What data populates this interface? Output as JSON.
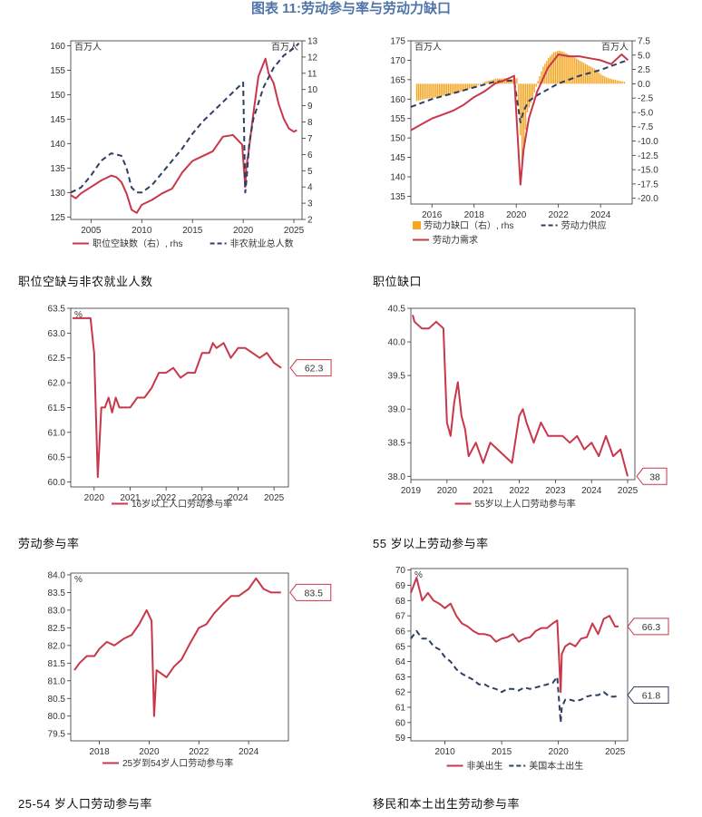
{
  "page_title": "图表 11:劳动参与率与劳动力缺口",
  "captions": [
    "职位空缺与非农就业人数",
    "职位缺口",
    "劳动参与率",
    "55 岁以上劳动参与率",
    "25-54 岁人口劳动参与率",
    "移民和本土出生劳动参与率"
  ],
  "colors": {
    "red": "#c8374a",
    "navy": "#2e3f63",
    "orange": "#f5a623",
    "title": "#4f74a8"
  },
  "chart_data": [
    {
      "type": "line",
      "unit_left": "百万人",
      "unit_right": "百万人",
      "xlim": [
        2003,
        2025.8
      ],
      "ylim": [
        124.5,
        161
      ],
      "ylim_right": [
        2,
        13
      ],
      "xticks": [
        2005,
        2010,
        2015,
        2020,
        2025
      ],
      "yticks": [
        125,
        130,
        135,
        140,
        145,
        150,
        155,
        160
      ],
      "yticks_right": [
        2,
        3,
        4,
        5,
        6,
        7,
        8,
        9,
        10,
        11,
        12,
        13
      ],
      "series": [
        {
          "name": "职位空缺数（右）, rhs",
          "axis": "right",
          "color": "red",
          "style": "solid",
          "x": [
            2003,
            2003.5,
            2004,
            2005,
            2006,
            2007,
            2007.5,
            2008,
            2008.5,
            2009,
            2009.5,
            2010,
            2011,
            2012,
            2013,
            2014,
            2015,
            2016,
            2017,
            2018,
            2019,
            2019.9,
            2020.2,
            2020.3,
            2020.5,
            2021,
            2021.5,
            2022,
            2022.2,
            2022.5,
            2023,
            2023.5,
            2024,
            2024.5,
            2025,
            2025.3
          ],
          "y": [
            3.5,
            3.3,
            3.6,
            4,
            4.4,
            4.7,
            4.6,
            4.3,
            3.6,
            2.6,
            2.4,
            2.9,
            3.2,
            3.6,
            3.9,
            4.9,
            5.6,
            5.9,
            6.2,
            7.1,
            7.2,
            6.6,
            4.0,
            5.2,
            6.0,
            8.5,
            10.8,
            11.6,
            11.9,
            11.0,
            10.4,
            9.1,
            8.2,
            7.6,
            7.4,
            7.5
          ]
        },
        {
          "name": "非农就业总人数",
          "axis": "left",
          "color": "navy",
          "style": "dashed",
          "x": [
            2003,
            2004,
            2005,
            2006,
            2007,
            2008,
            2008.5,
            2009,
            2009.5,
            2010,
            2011,
            2012,
            2013,
            2014,
            2015,
            2016,
            2017,
            2018,
            2019,
            2020,
            2020.2,
            2020.35,
            2020.6,
            2021,
            2022,
            2023,
            2024,
            2025,
            2025.5
          ],
          "y": [
            130,
            131,
            133.5,
            136.5,
            138,
            137.5,
            135,
            131,
            130,
            130,
            131.5,
            134,
            136.5,
            139,
            142,
            144.5,
            146.5,
            148.5,
            150.5,
            152.5,
            130,
            133,
            140,
            145,
            151.5,
            155.5,
            158,
            159.5,
            160.5
          ]
        }
      ],
      "legend": [
        {
          "label": "职位空缺数（右）, rhs",
          "color": "red",
          "style": "solid"
        },
        {
          "label": "非农就业总人数",
          "color": "navy",
          "style": "dashed"
        }
      ]
    },
    {
      "type": "line",
      "unit_left": "百万人",
      "unit_right": "百万人",
      "xlim": [
        2015,
        2025.5
      ],
      "ylim": [
        133,
        175
      ],
      "ylim_right": [
        -21,
        7.5
      ],
      "xticks": [
        2016,
        2018,
        2020,
        2022,
        2024
      ],
      "yticks": [
        135,
        140,
        145,
        150,
        155,
        160,
        165,
        170,
        175
      ],
      "yticks_right": [
        -20.0,
        -17.5,
        -15.0,
        -12.5,
        -10.0,
        -7.5,
        -5.0,
        -2.5,
        0.0,
        2.5,
        5.0,
        7.5
      ],
      "series": [
        {
          "name": "劳动力缺口（右）, rhs",
          "axis": "right",
          "color": "orange",
          "style": "bar",
          "x": [
            2015.25,
            2015.5,
            2015.75,
            2016,
            2016.25,
            2016.5,
            2016.75,
            2017,
            2017.25,
            2017.5,
            2017.75,
            2018,
            2018.25,
            2018.5,
            2018.75,
            2019,
            2019.25,
            2019.5,
            2019.75,
            2020,
            2020.25,
            2020.5,
            2020.75,
            2021,
            2021.25,
            2021.5,
            2021.75,
            2022,
            2022.25,
            2022.5,
            2022.75,
            2023,
            2023.25,
            2023.5,
            2023.75,
            2024,
            2024.25,
            2024.5,
            2024.75,
            2025,
            2025.2
          ],
          "y": [
            -3,
            -2.8,
            -2.6,
            -2.5,
            -2.3,
            -2.1,
            -1.9,
            -1.7,
            -1.5,
            -1.2,
            -0.9,
            -0.6,
            -0.1,
            0.4,
            0.6,
            0.9,
            0.9,
            1.0,
            0.8,
            1.0,
            -14,
            -5,
            -2.5,
            0.5,
            3.0,
            4.5,
            5.5,
            5.8,
            5.5,
            5.0,
            4.6,
            4.0,
            3.5,
            3.0,
            2.5,
            1.6,
            1.1,
            0.8,
            0.6,
            0.4,
            0.3
          ]
        },
        {
          "name": "劳动力供应",
          "axis": "left",
          "color": "navy",
          "style": "dashed",
          "x": [
            2015,
            2016,
            2017,
            2018,
            2019,
            2019.9,
            2020.2,
            2020.35,
            2020.6,
            2021,
            2022,
            2023,
            2024,
            2025,
            2025.3
          ],
          "y": [
            158,
            160,
            161.5,
            163,
            164.5,
            164.8,
            154,
            157,
            159.5,
            161,
            164,
            166,
            167.5,
            169.5,
            170
          ]
        },
        {
          "name": "劳动力需求",
          "axis": "left",
          "color": "red",
          "style": "solid",
          "x": [
            2015,
            2015.5,
            2016,
            2016.5,
            2017,
            2017.5,
            2018,
            2018.5,
            2019,
            2019.5,
            2019.9,
            2020.2,
            2020.35,
            2020.6,
            2021,
            2021.5,
            2022,
            2022.5,
            2023,
            2023.5,
            2024,
            2024.5,
            2025,
            2025.3
          ],
          "y": [
            152,
            153.5,
            155,
            156,
            157,
            158.5,
            160.5,
            162,
            164,
            165,
            166,
            138,
            147,
            155,
            162,
            168,
            171.5,
            171,
            171,
            170.5,
            170,
            169,
            171.5,
            170
          ]
        }
      ],
      "legend": [
        {
          "label": "劳动力缺口（右）, rhs",
          "color": "orange",
          "style": "bar"
        },
        {
          "label": "劳动力供应",
          "color": "navy",
          "style": "dashed"
        },
        {
          "label": "劳动力需求",
          "color": "red",
          "style": "solid"
        }
      ]
    },
    {
      "type": "line",
      "unit_left": "%",
      "xlim": [
        2019.35,
        2025.4
      ],
      "ylim": [
        59.9,
        63.5
      ],
      "xticks": [
        2020,
        2021,
        2022,
        2023,
        2024,
        2025
      ],
      "yticks": [
        60.0,
        60.5,
        61.0,
        61.5,
        62.0,
        62.5,
        63.0,
        63.5
      ],
      "end_label": "62.3",
      "series": [
        {
          "name": "16岁以上人口劳动参与率",
          "axis": "left",
          "color": "red",
          "style": "solid",
          "x": [
            2019.4,
            2019.9,
            2020.0,
            2020.1,
            2020.2,
            2020.3,
            2020.4,
            2020.5,
            2020.6,
            2020.7,
            2020.8,
            2020.9,
            2021,
            2021.2,
            2021.4,
            2021.6,
            2021.8,
            2022,
            2022.2,
            2022.4,
            2022.6,
            2022.8,
            2023,
            2023.2,
            2023.3,
            2023.4,
            2023.6,
            2023.8,
            2024,
            2024.2,
            2024.4,
            2024.6,
            2024.8,
            2025,
            2025.2
          ],
          "y": [
            63.3,
            63.3,
            62.6,
            60.1,
            61.5,
            61.5,
            61.7,
            61.4,
            61.7,
            61.5,
            61.5,
            61.5,
            61.5,
            61.7,
            61.7,
            61.9,
            62.2,
            62.2,
            62.3,
            62.1,
            62.2,
            62.2,
            62.6,
            62.6,
            62.8,
            62.7,
            62.8,
            62.5,
            62.7,
            62.7,
            62.6,
            62.5,
            62.6,
            62.4,
            62.3
          ]
        }
      ],
      "legend": [
        {
          "label": "16岁以上人口劳动参与率",
          "color": "red",
          "style": "solid"
        }
      ]
    },
    {
      "type": "line",
      "unit_left": "",
      "xlim": [
        2019,
        2025.2
      ],
      "ylim": [
        37.95,
        40.5
      ],
      "xticks": [
        2019,
        2020,
        2021,
        2022,
        2023,
        2024,
        2025
      ],
      "yticks": [
        38.0,
        38.5,
        39.0,
        39.5,
        40.0,
        40.5
      ],
      "end_label": "38",
      "series": [
        {
          "name": "55岁以上人口劳动参与率",
          "axis": "left",
          "color": "red",
          "style": "solid",
          "x": [
            2019.05,
            2019.1,
            2019.3,
            2019.5,
            2019.7,
            2019.9,
            2020.0,
            2020.1,
            2020.2,
            2020.3,
            2020.4,
            2020.5,
            2020.6,
            2020.8,
            2021.0,
            2021.2,
            2021.4,
            2021.6,
            2021.8,
            2022.0,
            2022.1,
            2022.2,
            2022.4,
            2022.6,
            2022.8,
            2023.0,
            2023.2,
            2023.4,
            2023.6,
            2023.8,
            2024.0,
            2024.2,
            2024.4,
            2024.6,
            2024.8,
            2025.0
          ],
          "y": [
            40.4,
            40.3,
            40.2,
            40.2,
            40.3,
            40.2,
            38.8,
            38.6,
            39.1,
            39.4,
            38.9,
            38.7,
            38.3,
            38.5,
            38.2,
            38.5,
            38.4,
            38.3,
            38.2,
            38.9,
            39.0,
            38.8,
            38.5,
            38.8,
            38.6,
            38.6,
            38.6,
            38.5,
            38.6,
            38.4,
            38.5,
            38.3,
            38.6,
            38.3,
            38.4,
            38.0
          ]
        }
      ],
      "legend": [
        {
          "label": "55岁以上人口劳动参与率",
          "color": "red",
          "style": "solid"
        }
      ]
    },
    {
      "type": "line",
      "unit_left": "%",
      "xlim": [
        2016.85,
        2025.6
      ],
      "ylim": [
        79.3,
        84.05
      ],
      "xticks": [
        2018,
        2020,
        2022,
        2024
      ],
      "yticks": [
        79.5,
        80.0,
        80.5,
        81.0,
        81.5,
        82.0,
        82.5,
        83.0,
        83.5,
        84.0
      ],
      "end_label": "83.5",
      "series": [
        {
          "name": "25岁到54岁人口劳动参与率",
          "axis": "left",
          "color": "red",
          "style": "solid",
          "x": [
            2017,
            2017.2,
            2017.5,
            2017.8,
            2018,
            2018.3,
            2018.6,
            2019,
            2019.3,
            2019.6,
            2019.9,
            2020.1,
            2020.2,
            2020.3,
            2020.5,
            2020.7,
            2021,
            2021.3,
            2021.6,
            2022,
            2022.3,
            2022.6,
            2023,
            2023.3,
            2023.6,
            2024,
            2024.3,
            2024.6,
            2024.9,
            2025.1,
            2025.3
          ],
          "y": [
            81.3,
            81.5,
            81.7,
            81.7,
            81.9,
            82.1,
            82.0,
            82.2,
            82.3,
            82.6,
            83.0,
            82.7,
            80.0,
            81.3,
            81.2,
            81.1,
            81.4,
            81.6,
            82.0,
            82.5,
            82.6,
            82.9,
            83.2,
            83.4,
            83.4,
            83.6,
            83.9,
            83.6,
            83.5,
            83.5,
            83.5
          ]
        }
      ],
      "legend": [
        {
          "label": "25岁到54岁人口劳动参与率",
          "color": "red",
          "style": "solid"
        }
      ]
    },
    {
      "type": "line",
      "unit_left": "%",
      "xlim": [
        2007,
        2026.1
      ],
      "ylim": [
        58.8,
        70.1
      ],
      "xticks": [
        2010,
        2015,
        2020,
        2025
      ],
      "yticks": [
        59,
        60,
        61,
        62,
        63,
        64,
        65,
        66,
        67,
        68,
        69,
        70
      ],
      "end_labels": [
        "66.3",
        "61.8"
      ],
      "series": [
        {
          "name": "非美出生",
          "axis": "left",
          "color": "red",
          "style": "solid",
          "x": [
            2007,
            2007.5,
            2008,
            2008.5,
            2009,
            2009.5,
            2010,
            2010.5,
            2011,
            2011.5,
            2012,
            2012.5,
            2013,
            2013.5,
            2014,
            2014.5,
            2015,
            2015.5,
            2016,
            2016.5,
            2017,
            2017.5,
            2018,
            2018.5,
            2019,
            2019.5,
            2019.9,
            2020.2,
            2020.3,
            2020.6,
            2021,
            2021.5,
            2022,
            2022.5,
            2023,
            2023.5,
            2024,
            2024.5,
            2025,
            2025.3
          ],
          "y": [
            68.5,
            69.5,
            68.0,
            68.5,
            68.0,
            67.8,
            67.5,
            67.8,
            67.0,
            66.5,
            66.3,
            66.0,
            65.8,
            65.8,
            65.7,
            65.3,
            65.5,
            65.6,
            65.8,
            65.3,
            65.5,
            65.6,
            66.0,
            66.2,
            66.2,
            66.5,
            66.7,
            62.0,
            64.5,
            65.0,
            65.2,
            65.0,
            65.5,
            65.6,
            66.5,
            65.8,
            66.8,
            67.0,
            66.3,
            66.3
          ]
        },
        {
          "name": "美国本土出生",
          "axis": "left",
          "color": "navy",
          "style": "dashed",
          "x": [
            2007,
            2007.5,
            2008,
            2008.5,
            2009,
            2009.5,
            2010,
            2010.5,
            2011,
            2011.5,
            2012,
            2012.5,
            2013,
            2013.5,
            2014,
            2014.5,
            2015,
            2015.5,
            2016,
            2016.5,
            2017,
            2017.5,
            2018,
            2018.5,
            2019,
            2019.5,
            2019.9,
            2020.2,
            2020.3,
            2020.6,
            2021,
            2021.5,
            2022,
            2022.5,
            2023,
            2023.5,
            2024,
            2024.5,
            2025,
            2025.3
          ],
          "y": [
            65.5,
            66.0,
            65.5,
            65.5,
            65.0,
            64.8,
            64.3,
            64.0,
            63.5,
            63.2,
            63.0,
            62.8,
            62.5,
            62.5,
            62.3,
            62.2,
            62.0,
            62.2,
            62.2,
            62.1,
            62.3,
            62.2,
            62.3,
            62.4,
            62.5,
            62.6,
            63.0,
            60.0,
            61.0,
            61.5,
            61.5,
            61.4,
            61.5,
            61.7,
            61.8,
            61.8,
            62.0,
            61.7,
            61.7,
            61.8
          ]
        }
      ],
      "legend": [
        {
          "label": "非美出生",
          "color": "red",
          "style": "solid"
        },
        {
          "label": "美国本土出生",
          "color": "navy",
          "style": "dashed"
        }
      ]
    }
  ]
}
